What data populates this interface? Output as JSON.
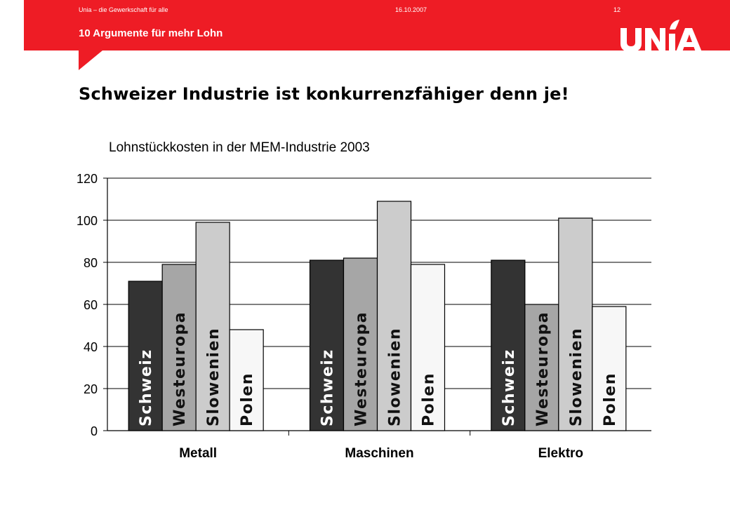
{
  "header": {
    "organization": "Unia – die Gewerkschaft für alle",
    "date": "16.10.2007",
    "page_number": "12",
    "subtitle": "10 Argumente für mehr Lohn",
    "logo_text": "UNIA",
    "brand_color": "#ee1c25"
  },
  "slide": {
    "heading": "Schweizer Industrie ist konkurrenzfähiger denn je!"
  },
  "chart_data": {
    "type": "bar",
    "title": "Lohnstückkosten in der MEM-Industrie 2003",
    "xlabel": "",
    "ylabel": "",
    "categories": [
      "Metall",
      "Maschinen",
      "Elektro"
    ],
    "series": [
      {
        "name": "Schweiz",
        "values": [
          71,
          81,
          81
        ],
        "color": "#333333"
      },
      {
        "name": "Westeuropa",
        "values": [
          79,
          82,
          60
        ],
        "color": "#a6a6a6"
      },
      {
        "name": "Slowenien",
        "values": [
          99,
          109,
          101
        ],
        "color": "#cccccc"
      },
      {
        "name": "Polen",
        "values": [
          48,
          79,
          59
        ],
        "color": "#f7f7f7"
      }
    ],
    "ylim": [
      0,
      120
    ],
    "yticks": [
      0,
      20,
      40,
      60,
      80,
      100,
      120
    ],
    "grid": true,
    "legend": "none"
  }
}
